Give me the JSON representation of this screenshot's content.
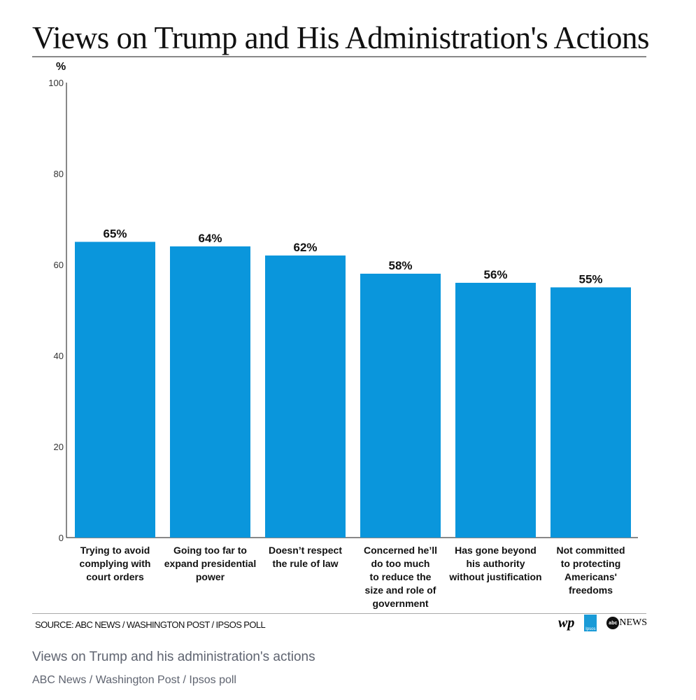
{
  "chart_data": {
    "type": "bar",
    "title": "Views on Trump and His Administration's Actions",
    "ylabel": "%",
    "ylim": [
      0,
      100
    ],
    "yticks": [
      0,
      20,
      40,
      60,
      80,
      100
    ],
    "grid": false,
    "categories": [
      [
        "Trying to avoid",
        "complying with",
        "court orders"
      ],
      [
        "Going too far to",
        "expand presidential",
        "power"
      ],
      [
        "Doesn’t respect",
        "the rule of law"
      ],
      [
        "Concerned he’ll",
        "do too much",
        "to reduce the",
        "size and role of",
        "government"
      ],
      [
        "Has gone beyond",
        "his authority",
        "without justification"
      ],
      [
        "Not committed",
        "to protecting",
        "Americans'",
        "freedoms"
      ]
    ],
    "values": [
      65,
      64,
      62,
      58,
      56,
      55
    ],
    "data_labels": [
      "65%",
      "64%",
      "62%",
      "58%",
      "56%",
      "55%"
    ],
    "bar_color": "#0a96dc"
  },
  "source": "SOURCE: ABC NEWS / WASHINGTON POST / IPSOS POLL",
  "logos": {
    "wp": "wp",
    "ipsos": "Ipsos",
    "abc_dot": "abc",
    "abc_news": "NEWS"
  },
  "caption": {
    "title": "Views on Trump and his administration's actions",
    "subtitle": "ABC News / Washington Post / Ipsos poll"
  }
}
